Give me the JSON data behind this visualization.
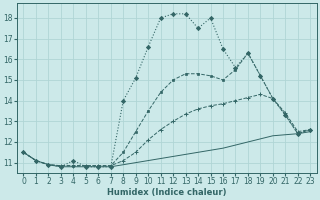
{
  "xlabel": "Humidex (Indice chaleur)",
  "background_color": "#cce9e9",
  "grid_color": "#b0d5d5",
  "line_color": "#336666",
  "xlim": [
    -0.5,
    23.5
  ],
  "ylim": [
    10.5,
    18.7
  ],
  "xticks": [
    0,
    1,
    2,
    3,
    4,
    5,
    6,
    7,
    8,
    9,
    10,
    11,
    12,
    13,
    14,
    15,
    16,
    17,
    18,
    19,
    20,
    21,
    22,
    23
  ],
  "yticks": [
    11,
    12,
    13,
    14,
    15,
    16,
    17,
    18
  ],
  "line1_x": [
    0,
    1,
    2,
    3,
    4,
    5,
    6,
    7,
    8,
    9,
    10,
    11,
    12,
    13,
    14,
    15,
    16,
    17,
    18,
    19,
    20,
    21,
    22,
    23
  ],
  "line1_y": [
    11.5,
    11.1,
    10.9,
    10.8,
    10.8,
    10.8,
    10.8,
    10.8,
    10.9,
    11.0,
    11.1,
    11.2,
    11.3,
    11.4,
    11.5,
    11.6,
    11.7,
    11.85,
    12.0,
    12.15,
    12.3,
    12.35,
    12.4,
    12.5
  ],
  "line2_x": [
    0,
    1,
    2,
    3,
    4,
    5,
    6,
    7,
    8,
    9,
    10,
    11,
    12,
    13,
    14,
    15,
    16,
    17,
    18,
    19,
    20,
    21,
    22,
    23
  ],
  "line2_y": [
    11.5,
    11.1,
    10.9,
    10.85,
    10.85,
    10.85,
    10.85,
    10.85,
    11.1,
    11.5,
    12.1,
    12.6,
    13.0,
    13.35,
    13.6,
    13.75,
    13.85,
    14.0,
    14.15,
    14.3,
    14.1,
    13.4,
    12.5,
    12.6
  ],
  "line3_x": [
    0,
    1,
    2,
    3,
    4,
    5,
    6,
    7,
    8,
    9,
    10,
    11,
    12,
    13,
    14,
    15,
    16,
    17,
    18,
    19,
    20,
    21,
    22,
    23
  ],
  "line3_y": [
    11.5,
    11.1,
    10.9,
    10.85,
    10.85,
    10.85,
    10.85,
    10.85,
    11.5,
    12.5,
    13.5,
    14.4,
    15.0,
    15.3,
    15.3,
    15.2,
    15.0,
    15.5,
    16.3,
    15.2,
    14.1,
    13.3,
    12.4,
    12.6
  ],
  "line4_x": [
    0,
    1,
    2,
    3,
    4,
    5,
    6,
    7,
    8,
    9,
    10,
    11,
    12,
    13,
    14,
    15,
    16,
    17,
    18,
    19,
    20,
    21,
    22,
    23
  ],
  "line4_y": [
    11.5,
    11.1,
    10.9,
    10.8,
    11.1,
    10.8,
    10.8,
    10.8,
    14.0,
    15.1,
    16.6,
    18.0,
    18.2,
    18.2,
    17.5,
    18.0,
    16.5,
    15.6,
    16.3,
    15.2,
    14.1,
    13.3,
    12.4,
    12.6
  ]
}
